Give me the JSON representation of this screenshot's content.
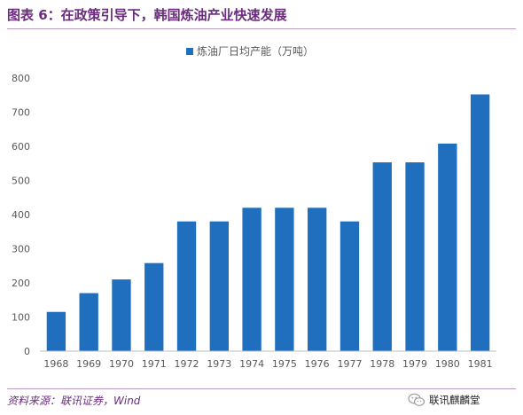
{
  "header": {
    "title": "图表 6：在政策引导下，韩国炼油产业快速发展"
  },
  "footer": {
    "source": "资料来源：联讯证券，Wind",
    "watermark": "联讯麒麟堂"
  },
  "colors": {
    "bar": "#1f6fbe",
    "title": "#6b2c7d",
    "axis": "#bfbfbf",
    "text": "#595959"
  },
  "chart_data": {
    "type": "bar",
    "title": "",
    "xlabel": "",
    "ylabel": "",
    "categories": [
      "1968",
      "1969",
      "1970",
      "1971",
      "1972",
      "1973",
      "1974",
      "1975",
      "1976",
      "1977",
      "1978",
      "1979",
      "1980",
      "1981"
    ],
    "series": [
      {
        "name": "炼油厂日均产能（万吨）",
        "values": [
          115,
          170,
          210,
          258,
          380,
          380,
          420,
          420,
          420,
          380,
          553,
          553,
          608,
          752
        ]
      }
    ],
    "ylim": [
      0,
      800
    ],
    "yticks": [
      0,
      100,
      200,
      300,
      400,
      500,
      600,
      700,
      800
    ],
    "grid": false,
    "legend_position": "top-center"
  }
}
